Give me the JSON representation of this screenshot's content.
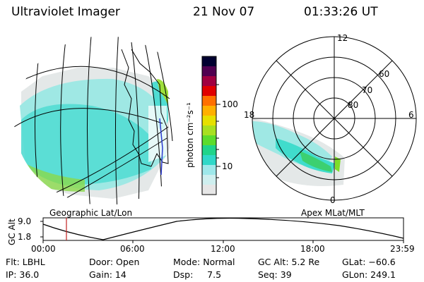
{
  "header": {
    "instrument": "Ultraviolet Imager",
    "date": "21 Nov 07",
    "time": "01:33:26 UT"
  },
  "geo_panel": {
    "label": "Geographic Lat/Lon"
  },
  "apex_panel": {
    "label": "Apex  MLat/MLT",
    "mlt_labels": [
      "12",
      "18",
      "6",
      "0"
    ],
    "mlat_labels": [
      "60",
      "70",
      "80"
    ]
  },
  "colorbar": {
    "unit_label": "photon cm⁻²s⁻¹",
    "ticks": [
      "100",
      "10"
    ],
    "scale": "log",
    "colors": [
      "#e0e0e0",
      "#a8ecec",
      "#40e0d0",
      "#22d3a0",
      "#7ee02a",
      "#e0e000",
      "#ffa000",
      "#ff4000",
      "#d00000",
      "#a00050",
      "#400040",
      "#000020"
    ]
  },
  "altitude_plot": {
    "y_title": "GC Alt",
    "y_ticks": [
      "9.0",
      "1.8"
    ],
    "x_ticks": [
      "00:00",
      "06:00",
      "12:00",
      "18:00",
      "23:59"
    ],
    "current_time_marker_hour": 1.56
  },
  "footer": {
    "flt": "Flt: LBHL",
    "ip": "IP: 36.0",
    "door": "Door: Open",
    "gain": "Gain: 14",
    "mode": "Mode: Normal",
    "dsp": "Dsp:     7.5",
    "gc_alt": "GC Alt: 5.2 Re",
    "seq": "Seq: 39",
    "glat": "GLat: −60.6",
    "glon": "GLon: 249.1"
  }
}
